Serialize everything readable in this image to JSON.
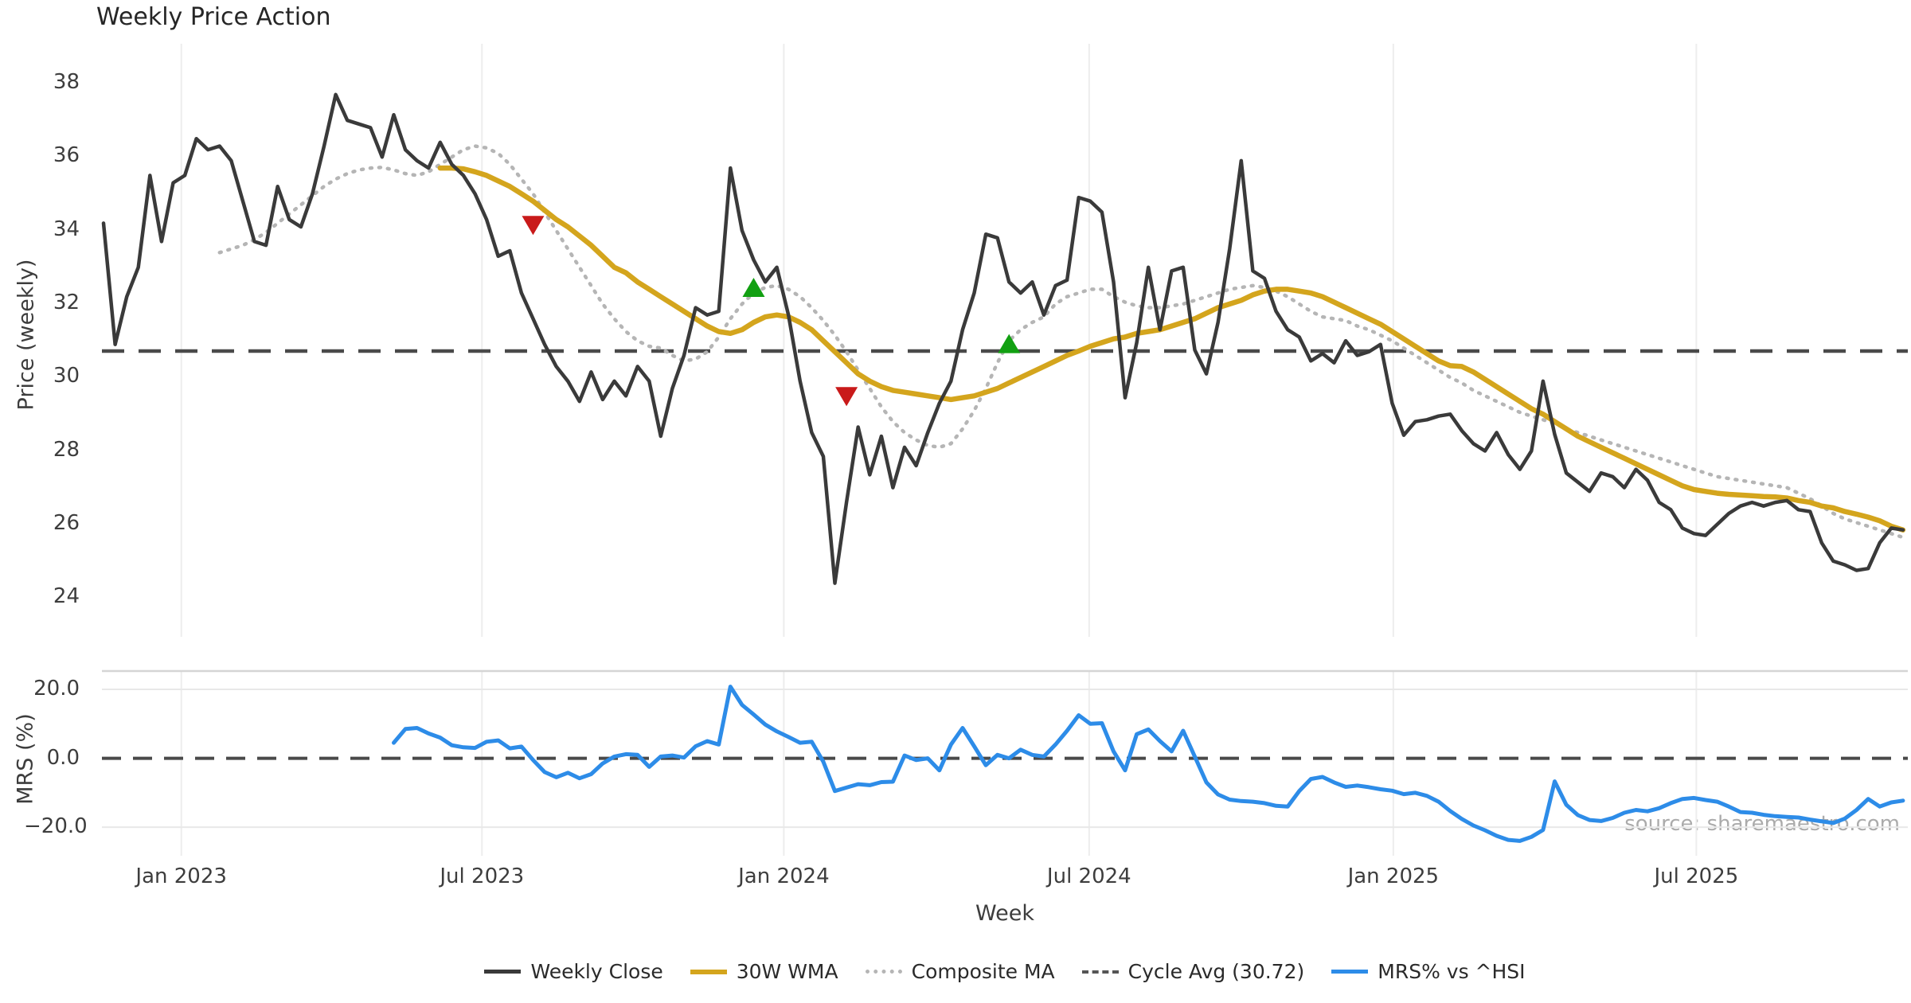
{
  "title": "Weekly Price Action",
  "watermark": "source: sharemaestro.com",
  "colors": {
    "weekly_close": "#3a3a3a",
    "wma_30w": "#d4a51d",
    "composite_ma": "#b5b5b5",
    "cycle_avg": "#4a4a4a",
    "mrs": "#2d8ce8",
    "sell_marker": "#c91a1a",
    "buy_marker": "#12a012",
    "gridline": "#ededed",
    "panel_border": "#d5d5d5"
  },
  "top_panel": {
    "ylabel": "Price (weekly)",
    "yticks": [
      38,
      36,
      34,
      32,
      30,
      28,
      26,
      24
    ]
  },
  "bottom_panel": {
    "ylabel": "MRS (%)",
    "yticks": [
      {
        "label": "20.0",
        "value": 20
      },
      {
        "label": "0.0",
        "value": 0
      },
      {
        "label": "−20.0",
        "value": -20
      }
    ]
  },
  "x_axis": {
    "label": "Week",
    "ticks": [
      {
        "label": "Jan 2023",
        "week": 6.7
      },
      {
        "label": "Jul 2023",
        "week": 32.6
      },
      {
        "label": "Jan 2024",
        "week": 58.6
      },
      {
        "label": "Jul 2024",
        "week": 84.9
      },
      {
        "label": "Jan 2025",
        "week": 111.1
      },
      {
        "label": "Jul 2025",
        "week": 137.2
      }
    ]
  },
  "legend": [
    {
      "label": "Weekly Close",
      "style": "sample-solid-dark"
    },
    {
      "label": "30W WMA",
      "style": "sample-solid-gold"
    },
    {
      "label": "Composite MA",
      "style": "sample-dotted"
    },
    {
      "label": "Cycle Avg (30.72)",
      "style": "sample-dashed"
    },
    {
      "label": "MRS% vs ^HSI",
      "style": "sample-solid-blue"
    }
  ],
  "chart_data": {
    "type": "line",
    "x_unit": "week_index",
    "total_weeks": 156,
    "x_range_note": "weekly data from mid-Nov 2022 to mid-Nov 2025",
    "top_ylim": [
      23.5,
      38.5
    ],
    "bottom_ylim": [
      -26,
      22
    ],
    "cycle_avg": 30.72,
    "series": [
      {
        "name": "Weekly Close",
        "panel": "top",
        "start_week": 0,
        "values": [
          34.2,
          30.9,
          32.2,
          33.0,
          35.5,
          33.7,
          35.3,
          35.5,
          36.5,
          36.2,
          36.3,
          35.9,
          34.8,
          33.7,
          33.6,
          35.2,
          34.3,
          34.1,
          35.0,
          36.3,
          37.7,
          37.0,
          36.9,
          36.8,
          36.0,
          37.15,
          36.2,
          35.9,
          35.7,
          36.4,
          35.8,
          35.5,
          35.0,
          34.3,
          33.3,
          33.45,
          32.3,
          31.6,
          30.9,
          30.3,
          29.9,
          29.35,
          30.15,
          29.4,
          29.9,
          29.5,
          30.3,
          29.9,
          28.4,
          29.7,
          30.6,
          31.9,
          31.7,
          31.8,
          35.7,
          34.0,
          33.2,
          32.6,
          33.0,
          31.7,
          29.9,
          28.5,
          27.85,
          24.4,
          26.6,
          28.65,
          27.35,
          28.4,
          27.0,
          28.1,
          27.6,
          28.5,
          29.3,
          29.9,
          31.3,
          32.3,
          33.9,
          33.8,
          32.6,
          32.3,
          32.6,
          31.7,
          32.5,
          32.65,
          34.9,
          34.8,
          34.5,
          32.6,
          29.45,
          30.95,
          33.0,
          31.3,
          32.9,
          33.0,
          30.75,
          30.1,
          31.5,
          33.5,
          35.9,
          32.9,
          32.7,
          31.8,
          31.3,
          31.1,
          30.45,
          30.65,
          30.4,
          31.0,
          30.6,
          30.7,
          30.9,
          29.3,
          28.43,
          28.8,
          28.85,
          28.95,
          29.0,
          28.55,
          28.2,
          28.0,
          28.5,
          27.9,
          27.5,
          28.0,
          29.9,
          28.45,
          27.4,
          27.15,
          26.9,
          27.4,
          27.3,
          27.0,
          27.5,
          27.2,
          26.6,
          26.4,
          25.9,
          25.75,
          25.7,
          26.0,
          26.3,
          26.5,
          26.6,
          26.5,
          26.6,
          26.65,
          26.4,
          26.35,
          25.5,
          25.0,
          24.9,
          24.75,
          24.8,
          25.5,
          25.9,
          25.85
        ]
      },
      {
        "name": "30W WMA",
        "panel": "top",
        "start_week": 29,
        "values": [
          35.7,
          35.7,
          35.68,
          35.6,
          35.5,
          35.35,
          35.2,
          35.0,
          34.8,
          34.55,
          34.3,
          34.1,
          33.85,
          33.6,
          33.3,
          33.0,
          32.85,
          32.6,
          32.4,
          32.2,
          32.0,
          31.8,
          31.6,
          31.4,
          31.25,
          31.2,
          31.3,
          31.5,
          31.65,
          31.7,
          31.65,
          31.5,
          31.3,
          31.0,
          30.7,
          30.4,
          30.1,
          29.9,
          29.75,
          29.65,
          29.6,
          29.55,
          29.5,
          29.45,
          29.4,
          29.45,
          29.5,
          29.6,
          29.7,
          29.85,
          30.0,
          30.15,
          30.3,
          30.45,
          30.6,
          30.72,
          30.85,
          30.95,
          31.05,
          31.1,
          31.2,
          31.25,
          31.3,
          31.4,
          31.5,
          31.6,
          31.75,
          31.9,
          32.0,
          32.1,
          32.25,
          32.35,
          32.4,
          32.4,
          32.35,
          32.3,
          32.2,
          32.05,
          31.9,
          31.75,
          31.6,
          31.45,
          31.25,
          31.05,
          30.85,
          30.65,
          30.45,
          30.32,
          30.3,
          30.15,
          29.95,
          29.75,
          29.55,
          29.35,
          29.15,
          29.0,
          28.8,
          28.6,
          28.4,
          28.25,
          28.1,
          27.95,
          27.8,
          27.65,
          27.5,
          27.35,
          27.2,
          27.05,
          26.95,
          26.9,
          26.85,
          26.82,
          26.8,
          26.78,
          26.76,
          26.75,
          26.72,
          26.65,
          26.6,
          26.5,
          26.45,
          26.35,
          26.28,
          26.2,
          26.1,
          25.95,
          25.85
        ]
      },
      {
        "name": "Composite MA",
        "panel": "top",
        "start_week": 10,
        "values": [
          33.4,
          33.5,
          33.6,
          33.75,
          33.95,
          34.2,
          34.45,
          34.7,
          34.95,
          35.2,
          35.4,
          35.55,
          35.65,
          35.7,
          35.72,
          35.65,
          35.55,
          35.5,
          35.6,
          35.8,
          36.0,
          36.2,
          36.3,
          36.25,
          36.1,
          35.8,
          35.4,
          35.0,
          34.5,
          34.0,
          33.5,
          33.0,
          32.5,
          32.0,
          31.6,
          31.25,
          31.0,
          30.85,
          30.8,
          30.6,
          30.45,
          30.5,
          30.7,
          31.1,
          31.6,
          32.0,
          32.3,
          32.45,
          32.5,
          32.4,
          32.2,
          31.9,
          31.55,
          31.15,
          30.7,
          30.2,
          29.7,
          29.2,
          28.8,
          28.5,
          28.3,
          28.15,
          28.1,
          28.2,
          28.6,
          29.1,
          29.7,
          30.4,
          31.0,
          31.3,
          31.5,
          31.65,
          32.0,
          32.2,
          32.3,
          32.4,
          32.4,
          32.2,
          32.05,
          31.95,
          31.9,
          31.9,
          31.95,
          32.0,
          32.1,
          32.2,
          32.3,
          32.4,
          32.45,
          32.5,
          32.45,
          32.35,
          32.2,
          32.0,
          31.8,
          31.65,
          31.6,
          31.55,
          31.4,
          31.3,
          31.15,
          31.0,
          30.8,
          30.6,
          30.4,
          30.2,
          30.0,
          29.85,
          29.65,
          29.5,
          29.35,
          29.2,
          29.05,
          28.95,
          28.85,
          28.75,
          28.6,
          28.5,
          28.4,
          28.3,
          28.2,
          28.1,
          28.0,
          27.9,
          27.8,
          27.7,
          27.6,
          27.5,
          27.4,
          27.3,
          27.25,
          27.2,
          27.15,
          27.1,
          27.05,
          27.0,
          26.85,
          26.7,
          26.5,
          26.3,
          26.15,
          26.05,
          25.95,
          25.85,
          25.75,
          25.65
        ]
      },
      {
        "name": "MRS% vs ^HSI",
        "panel": "bottom",
        "start_week": 25,
        "values": [
          4.5,
          8.5,
          8.8,
          7.2,
          6.0,
          3.8,
          3.2,
          3.0,
          4.8,
          5.2,
          2.9,
          3.4,
          -0.5,
          -4.0,
          -5.5,
          -4.2,
          -5.8,
          -4.6,
          -1.5,
          0.5,
          1.2,
          1.0,
          -2.5,
          0.5,
          0.8,
          0.2,
          3.5,
          5.0,
          4.0,
          20.8,
          15.5,
          12.7,
          9.8,
          7.8,
          6.2,
          4.5,
          4.8,
          -1.0,
          -9.5,
          -8.5,
          -7.5,
          -7.8,
          -6.9,
          -6.8,
          0.8,
          -0.5,
          0.0,
          -3.5,
          4.0,
          8.8,
          3.5,
          -2.0,
          1.0,
          0.0,
          2.5,
          1.0,
          0.5,
          4.0,
          8.0,
          12.5,
          10.0,
          10.2,
          2.0,
          -3.5,
          7.0,
          8.4,
          5.0,
          2.0,
          8.0,
          0.5,
          -7.0,
          -10.5,
          -12.0,
          -12.4,
          -12.6,
          -13.0,
          -13.8,
          -14.0,
          -9.5,
          -6.0,
          -5.4,
          -7.0,
          -8.3,
          -7.9,
          -8.4,
          -9.0,
          -9.4,
          -10.4,
          -10.0,
          -10.9,
          -12.6,
          -15.3,
          -17.6,
          -19.5,
          -20.9,
          -22.5,
          -23.7,
          -24.0,
          -22.8,
          -20.8,
          -6.7,
          -13.5,
          -16.5,
          -17.9,
          -18.2,
          -17.3,
          -15.8,
          -15.0,
          -15.4,
          -14.5,
          -13.0,
          -11.8,
          -11.5,
          -12.1,
          -12.6,
          -14.0,
          -15.6,
          -15.8,
          -16.4,
          -16.8,
          -17.0,
          -17.2,
          -17.8,
          -18.3,
          -18.8,
          -17.5,
          -15.0,
          -11.8,
          -14.0,
          -12.8,
          -12.3
        ]
      }
    ],
    "markers": {
      "sell": [
        {
          "week": 37,
          "value": 34.16
        },
        {
          "week": 64,
          "value": 29.5
        }
      ],
      "buy": [
        {
          "week": 56,
          "value": 32.43
        },
        {
          "week": 78,
          "value": 30.9
        }
      ]
    }
  }
}
